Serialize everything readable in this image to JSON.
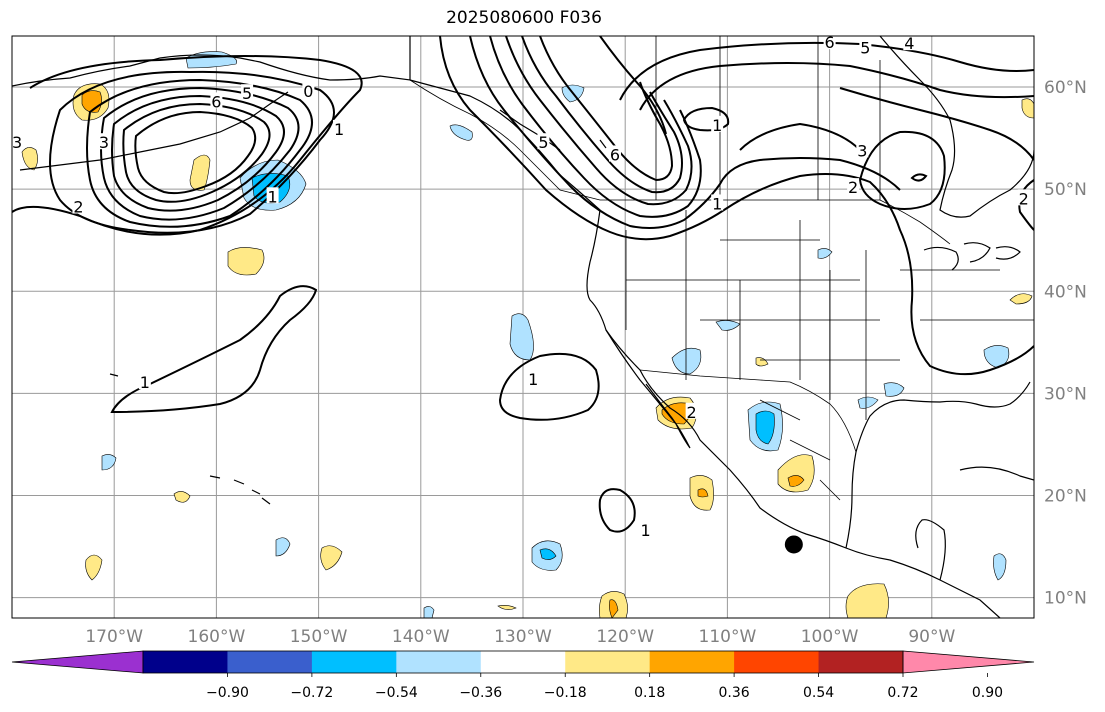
{
  "title": "2025080600 F036",
  "map": {
    "projection": "plate carree",
    "lon_range": [
      -180,
      -80
    ],
    "lat_range": [
      8,
      65
    ],
    "lon_ticks": [
      {
        "value": -170,
        "label": "170°W"
      },
      {
        "value": -160,
        "label": "160°W"
      },
      {
        "value": -150,
        "label": "150°W"
      },
      {
        "value": -140,
        "label": "140°W"
      },
      {
        "value": -130,
        "label": "130°W"
      },
      {
        "value": -120,
        "label": "120°W"
      },
      {
        "value": -110,
        "label": "110°W"
      },
      {
        "value": -100,
        "label": "100°W"
      },
      {
        "value": -90,
        "label": "90°W"
      }
    ],
    "lat_ticks": [
      {
        "value": 60,
        "label": "60°N"
      },
      {
        "value": 50,
        "label": "50°N"
      },
      {
        "value": 40,
        "label": "40°N"
      },
      {
        "value": 30,
        "label": "30°N"
      },
      {
        "value": 20,
        "label": "20°N"
      },
      {
        "value": 10,
        "label": "10°N"
      }
    ],
    "gridlines": true,
    "marker": {
      "lon": -103.5,
      "lat": 15.2,
      "color": "#000000"
    },
    "contour_labels": [
      {
        "text": "3",
        "lon": -171,
        "lat": 54.5
      },
      {
        "text": "6",
        "lon": -160,
        "lat": 58.5
      },
      {
        "text": "5",
        "lon": -157,
        "lat": 59.3
      },
      {
        "text": "0",
        "lon": -151,
        "lat": 59.5
      },
      {
        "text": "1",
        "lon": -148,
        "lat": 55.8
      },
      {
        "text": "2",
        "lon": -173.5,
        "lat": 48.2
      },
      {
        "text": "1",
        "lon": -154.5,
        "lat": 49.2
      },
      {
        "text": "3",
        "lon": -179.5,
        "lat": 54.5
      },
      {
        "text": "1",
        "lon": -167,
        "lat": 31
      },
      {
        "text": "1",
        "lon": -129,
        "lat": 31.3
      },
      {
        "text": "1",
        "lon": -118,
        "lat": 16.5
      },
      {
        "text": "5",
        "lon": -128,
        "lat": 54.5
      },
      {
        "text": "6",
        "lon": -121,
        "lat": 53.3
      },
      {
        "text": "1",
        "lon": -111,
        "lat": 56.2
      },
      {
        "text": "1",
        "lon": -111,
        "lat": 48.5
      },
      {
        "text": "6",
        "lon": -100,
        "lat": 64.3
      },
      {
        "text": "5",
        "lon": -96.5,
        "lat": 63.8
      },
      {
        "text": "4",
        "lon": -92.2,
        "lat": 64.2
      },
      {
        "text": "3",
        "lon": -96.8,
        "lat": 53.7
      },
      {
        "text": "2",
        "lon": -97.7,
        "lat": 50.1
      },
      {
        "text": "2",
        "lon": -81,
        "lat": 49
      },
      {
        "text": "2",
        "lon": -113.5,
        "lat": 28.1
      }
    ]
  },
  "colorbar": {
    "ticks": [
      "−0.90",
      "−0.72",
      "−0.54",
      "−0.36",
      "−0.18",
      "0.18",
      "0.36",
      "0.54",
      "0.72",
      "0.90"
    ],
    "colors": [
      "#9b30d0",
      "#00008b",
      "#3a5fcd",
      "#00bfff",
      "#b0e2ff",
      "#ffffff",
      "#ffe987",
      "#ffa500",
      "#ff4500",
      "#b22222",
      "#ff88aa"
    ]
  }
}
